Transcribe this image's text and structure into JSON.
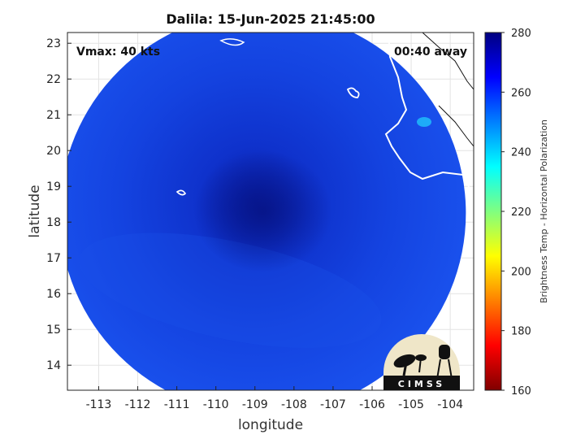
{
  "title": "Dalila: 15-Jun-2025 21:45:00",
  "annotations": {
    "vmax": "Vmax: 40 kts",
    "time_away": "00:40 away"
  },
  "logo": {
    "text": "CIMSS"
  },
  "chart_data": {
    "type": "heatmap",
    "xlabel": "longitude",
    "ylabel": "latitude",
    "xlim": [
      -113.8,
      -103.4
    ],
    "ylim": [
      13.3,
      23.3
    ],
    "x_ticks": [
      -113,
      -112,
      -111,
      -110,
      -109,
      -108,
      -107,
      -106,
      -105,
      -104
    ],
    "y_ticks": [
      14,
      15,
      16,
      17,
      18,
      19,
      20,
      21,
      22,
      23
    ],
    "x_tick_labels": [
      "-113",
      "-112",
      "-111",
      "-110",
      "-109",
      "-108",
      "-107",
      "-106",
      "-105",
      "-104"
    ],
    "y_tick_labels": [
      "14",
      "15",
      "16",
      "17",
      "18",
      "19",
      "20",
      "21",
      "22",
      "23"
    ],
    "grid": true,
    "colorbar": {
      "label": "Brightness Temp - Horizontal Polarization",
      "range": [
        160,
        280
      ],
      "ticks": [
        160,
        180,
        200,
        220,
        240,
        260,
        280
      ],
      "tick_labels": [
        "160",
        "180",
        "200",
        "220",
        "240",
        "260",
        "280"
      ],
      "colormap": "jet"
    },
    "storm_center": {
      "lon": -108.8,
      "lat": 18.3
    },
    "swath_center": {
      "lon": -108.8,
      "lat": 18.25
    }
  }
}
